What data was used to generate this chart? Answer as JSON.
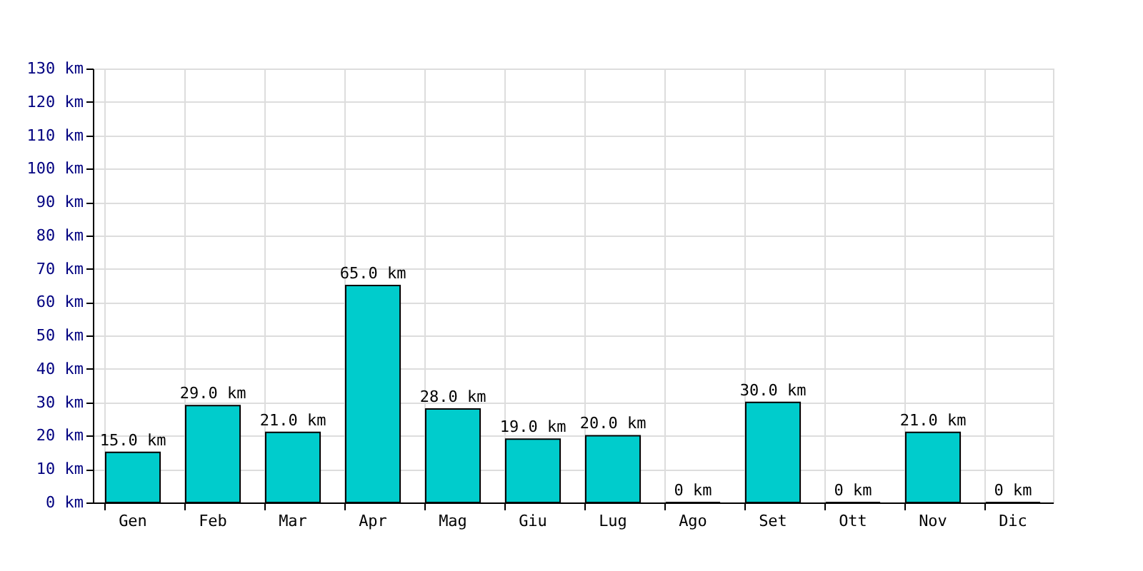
{
  "chart_data": {
    "type": "bar",
    "categories": [
      "Gen",
      "Feb",
      "Mar",
      "Apr",
      "Mag",
      "Giu",
      "Lug",
      "Ago",
      "Set",
      "Ott",
      "Nov",
      "Dic"
    ],
    "values": [
      15,
      29,
      21,
      65,
      28,
      19,
      20,
      0,
      30,
      0,
      21,
      0
    ],
    "value_labels": [
      "15.0 km",
      "29.0 km",
      "21.0 km",
      "65.0 km",
      "28.0 km",
      "19.0 km",
      "20.0 km",
      "0 km",
      "30.0 km",
      "0 km",
      "21.0 km",
      "0 km"
    ],
    "color": "#00cccc",
    "ylim": [
      0,
      130
    ],
    "yticks": [
      {
        "value": 0,
        "label": "0 km"
      },
      {
        "value": 10,
        "label": "10 km"
      },
      {
        "value": 20,
        "label": "20 km"
      },
      {
        "value": 30,
        "label": "30 km"
      },
      {
        "value": 40,
        "label": "40 km"
      },
      {
        "value": 50,
        "label": "50 km"
      },
      {
        "value": 60,
        "label": "60 km"
      },
      {
        "value": 70,
        "label": "70 km"
      },
      {
        "value": 80,
        "label": "80 km"
      },
      {
        "value": 90,
        "label": "90 km"
      },
      {
        "value": 100,
        "label": "100 km"
      },
      {
        "value": 110,
        "label": "110 km"
      },
      {
        "value": 120,
        "label": "120 km"
      },
      {
        "value": 130,
        "label": "130 km"
      }
    ],
    "grid": true
  }
}
